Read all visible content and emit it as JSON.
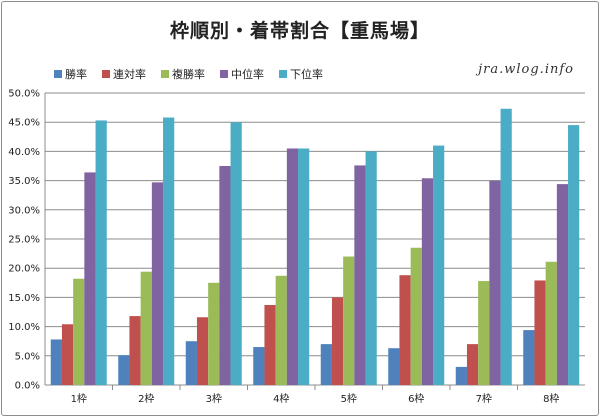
{
  "chart_data": {
    "type": "bar",
    "title": "枠順別・着帯割合【重馬場】",
    "watermark": "jra.wlog.info",
    "categories": [
      "1枠",
      "2枠",
      "3枠",
      "4枠",
      "5枠",
      "6枠",
      "7枠",
      "8枠"
    ],
    "series": [
      {
        "name": "勝率",
        "color": "#4f81bd",
        "values": [
          7.8,
          5.1,
          7.5,
          6.5,
          7.0,
          6.3,
          3.1,
          9.4
        ]
      },
      {
        "name": "連対率",
        "color": "#c0504d",
        "values": [
          10.4,
          11.8,
          11.6,
          13.7,
          15.0,
          18.8,
          7.0,
          17.9
        ]
      },
      {
        "name": "複勝率",
        "color": "#9bbb59",
        "values": [
          18.2,
          19.4,
          17.5,
          18.7,
          22.0,
          23.5,
          17.8,
          21.1
        ]
      },
      {
        "name": "中位率",
        "color": "#8064a2",
        "values": [
          36.4,
          34.7,
          37.5,
          40.5,
          37.6,
          35.4,
          35.0,
          34.4
        ]
      },
      {
        "name": "下位率",
        "color": "#4bacc6",
        "values": [
          45.3,
          45.8,
          45.0,
          40.5,
          40.0,
          41.0,
          47.3,
          44.5
        ]
      }
    ],
    "ylim": [
      0,
      50
    ],
    "yticks": [
      "0.0%",
      "5.0%",
      "10.0%",
      "15.0%",
      "20.0%",
      "25.0%",
      "30.0%",
      "35.0%",
      "40.0%",
      "45.0%",
      "50.0%"
    ],
    "xlabel": "",
    "ylabel": "",
    "grid": true,
    "legend_position": "top-left"
  }
}
